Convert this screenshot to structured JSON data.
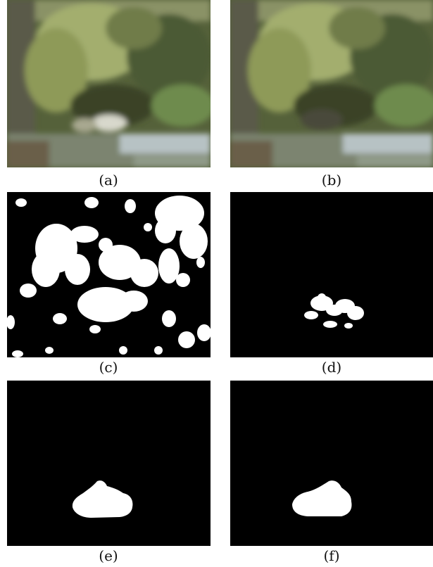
{
  "figure": {
    "panels": [
      {
        "id": "a",
        "caption": "(a)",
        "kind": "photo"
      },
      {
        "id": "b",
        "caption": "(b)",
        "kind": "photo"
      },
      {
        "id": "c",
        "caption": "(c)",
        "kind": "mask"
      },
      {
        "id": "d",
        "caption": "(d)",
        "kind": "mask"
      },
      {
        "id": "e",
        "caption": "(e)",
        "kind": "mask"
      },
      {
        "id": "f",
        "caption": "(f)",
        "kind": "mask"
      }
    ]
  },
  "colors": {
    "mask_background": "#000000",
    "mask_foreground": "#ffffff",
    "foliage_dark": "#3d4a2a",
    "foliage_light": "#9aa867",
    "water": "#b7c2c4"
  }
}
